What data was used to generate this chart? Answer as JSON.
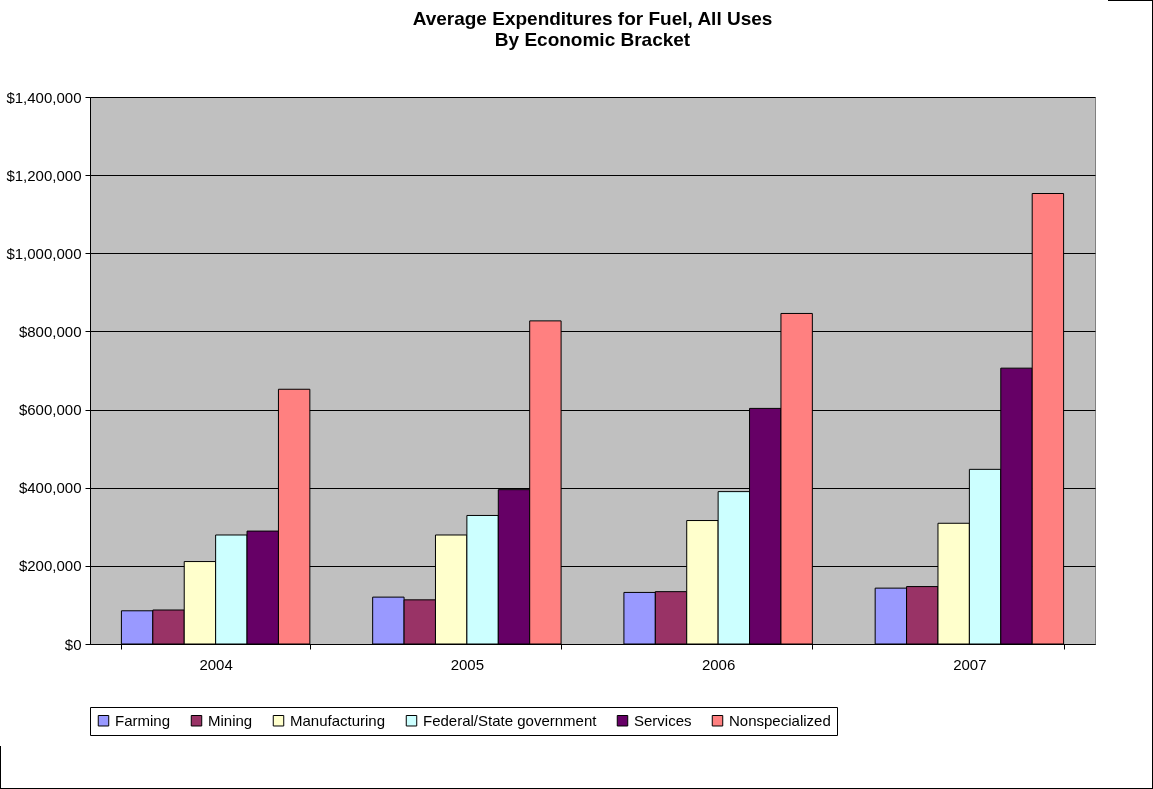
{
  "chart_data": {
    "type": "bar",
    "title": "Average Expenditures for Fuel, All Uses\nBy Economic Bracket",
    "categories": [
      "2004",
      "2005",
      "2006",
      "2007"
    ],
    "series": [
      {
        "name": "Farming",
        "color": "#9999ff",
        "values": [
          85000,
          120000,
          132000,
          143000
        ]
      },
      {
        "name": "Mining",
        "color": "#993366",
        "values": [
          87000,
          113000,
          134000,
          147000
        ]
      },
      {
        "name": "Manufacturing",
        "color": "#ffffcc",
        "values": [
          211000,
          279000,
          316000,
          309000
        ]
      },
      {
        "name": "Federal/State government",
        "color": "#ccffff",
        "values": [
          279000,
          329000,
          390000,
          447000
        ]
      },
      {
        "name": "Services",
        "color": "#660066",
        "values": [
          289000,
          395000,
          603000,
          706000
        ]
      },
      {
        "name": "Nonspecialized",
        "color": "#ff8080",
        "values": [
          652000,
          827000,
          846000,
          1153000
        ]
      }
    ],
    "ylim": [
      0,
      1400000
    ],
    "yticks": [
      {
        "value": 0,
        "label": "$0"
      },
      {
        "value": 200000,
        "label": "$200,000"
      },
      {
        "value": 400000,
        "label": "$400,000"
      },
      {
        "value": 600000,
        "label": "$600,000"
      },
      {
        "value": 800000,
        "label": "$800,000"
      },
      {
        "value": 1000000,
        "label": "$1,000,000"
      },
      {
        "value": 1200000,
        "label": "$1,200,000"
      },
      {
        "value": 1400000,
        "label": "$1,400,000"
      }
    ],
    "grid": "y",
    "legend": "bottom"
  }
}
